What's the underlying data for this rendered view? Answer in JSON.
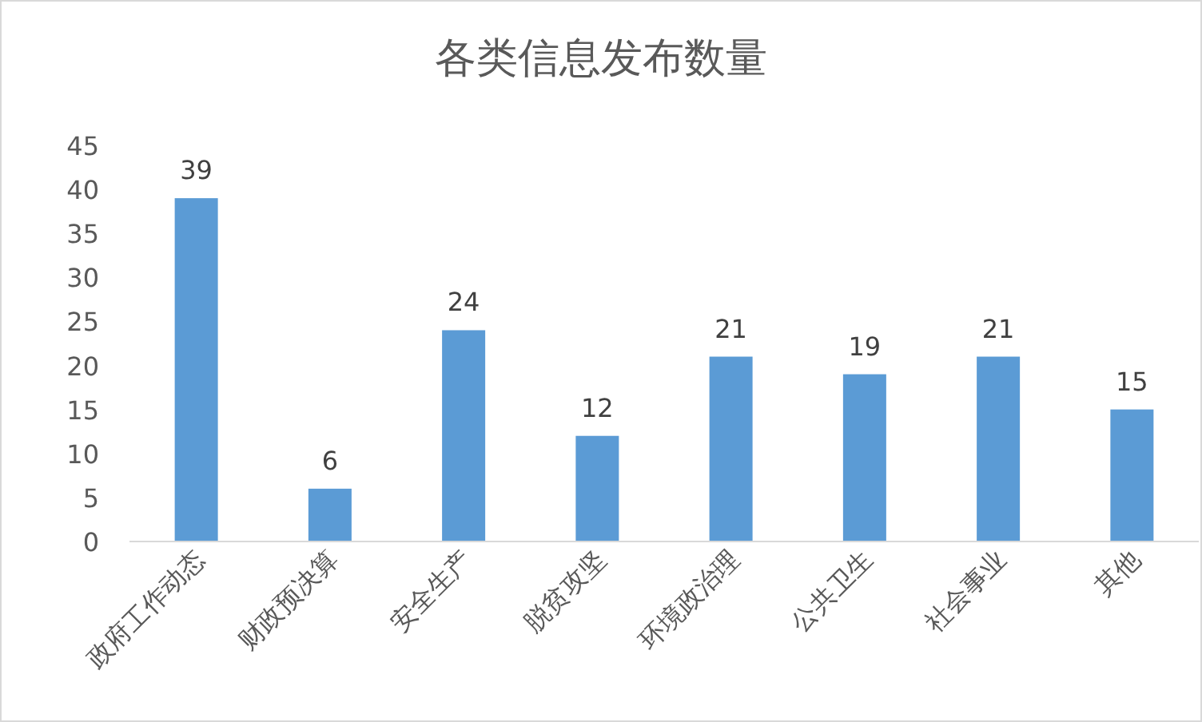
{
  "chart_data": {
    "type": "bar",
    "title": "各类信息发布数量",
    "categories": [
      "政府工作动态",
      "财政预决算",
      "安全生产",
      "脱贫攻坚",
      "环境政治理",
      "公共卫生",
      "社会事业",
      "其他"
    ],
    "values": [
      39,
      6,
      24,
      12,
      21,
      19,
      21,
      15
    ],
    "color": "#5b9bd5",
    "ylim": [
      0,
      45
    ],
    "yticks": [
      0,
      5,
      10,
      15,
      20,
      25,
      30,
      35,
      40,
      45
    ],
    "data_labels": true
  }
}
